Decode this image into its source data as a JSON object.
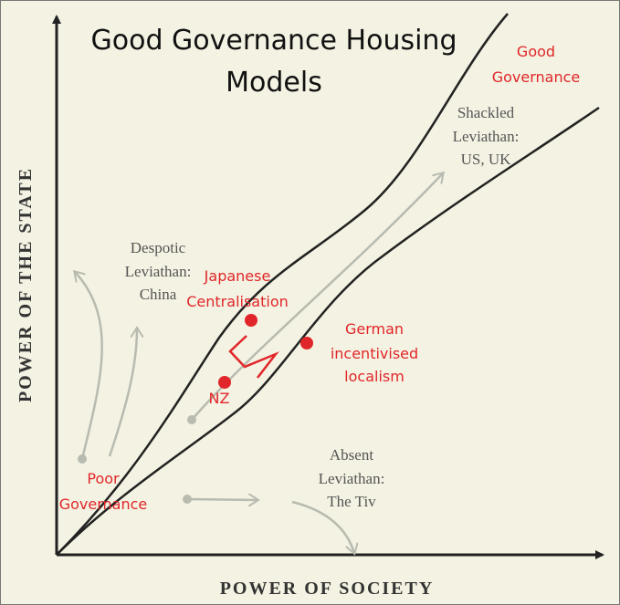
{
  "title": [
    "Good Governance Housing",
    "Models"
  ],
  "y_axis_label": "POWER OF THE STATE",
  "x_axis_label": "POWER OF SOCIETY",
  "regions": {
    "good_governance": [
      "Good",
      "Governance"
    ],
    "shackled": [
      "Shackled",
      "Leviathan:",
      "US, UK"
    ],
    "despotic": [
      "Despotic",
      "Leviathan:",
      "China"
    ],
    "absent": [
      "Absent",
      "Leviathan:",
      "The Tiv"
    ],
    "poor_governance": [
      "Poor",
      "Governance"
    ]
  },
  "points": {
    "japanese": [
      "Japanese",
      "Centralisation"
    ],
    "german": [
      "German",
      "incentivised",
      "localism"
    ],
    "nz": "NZ"
  }
}
